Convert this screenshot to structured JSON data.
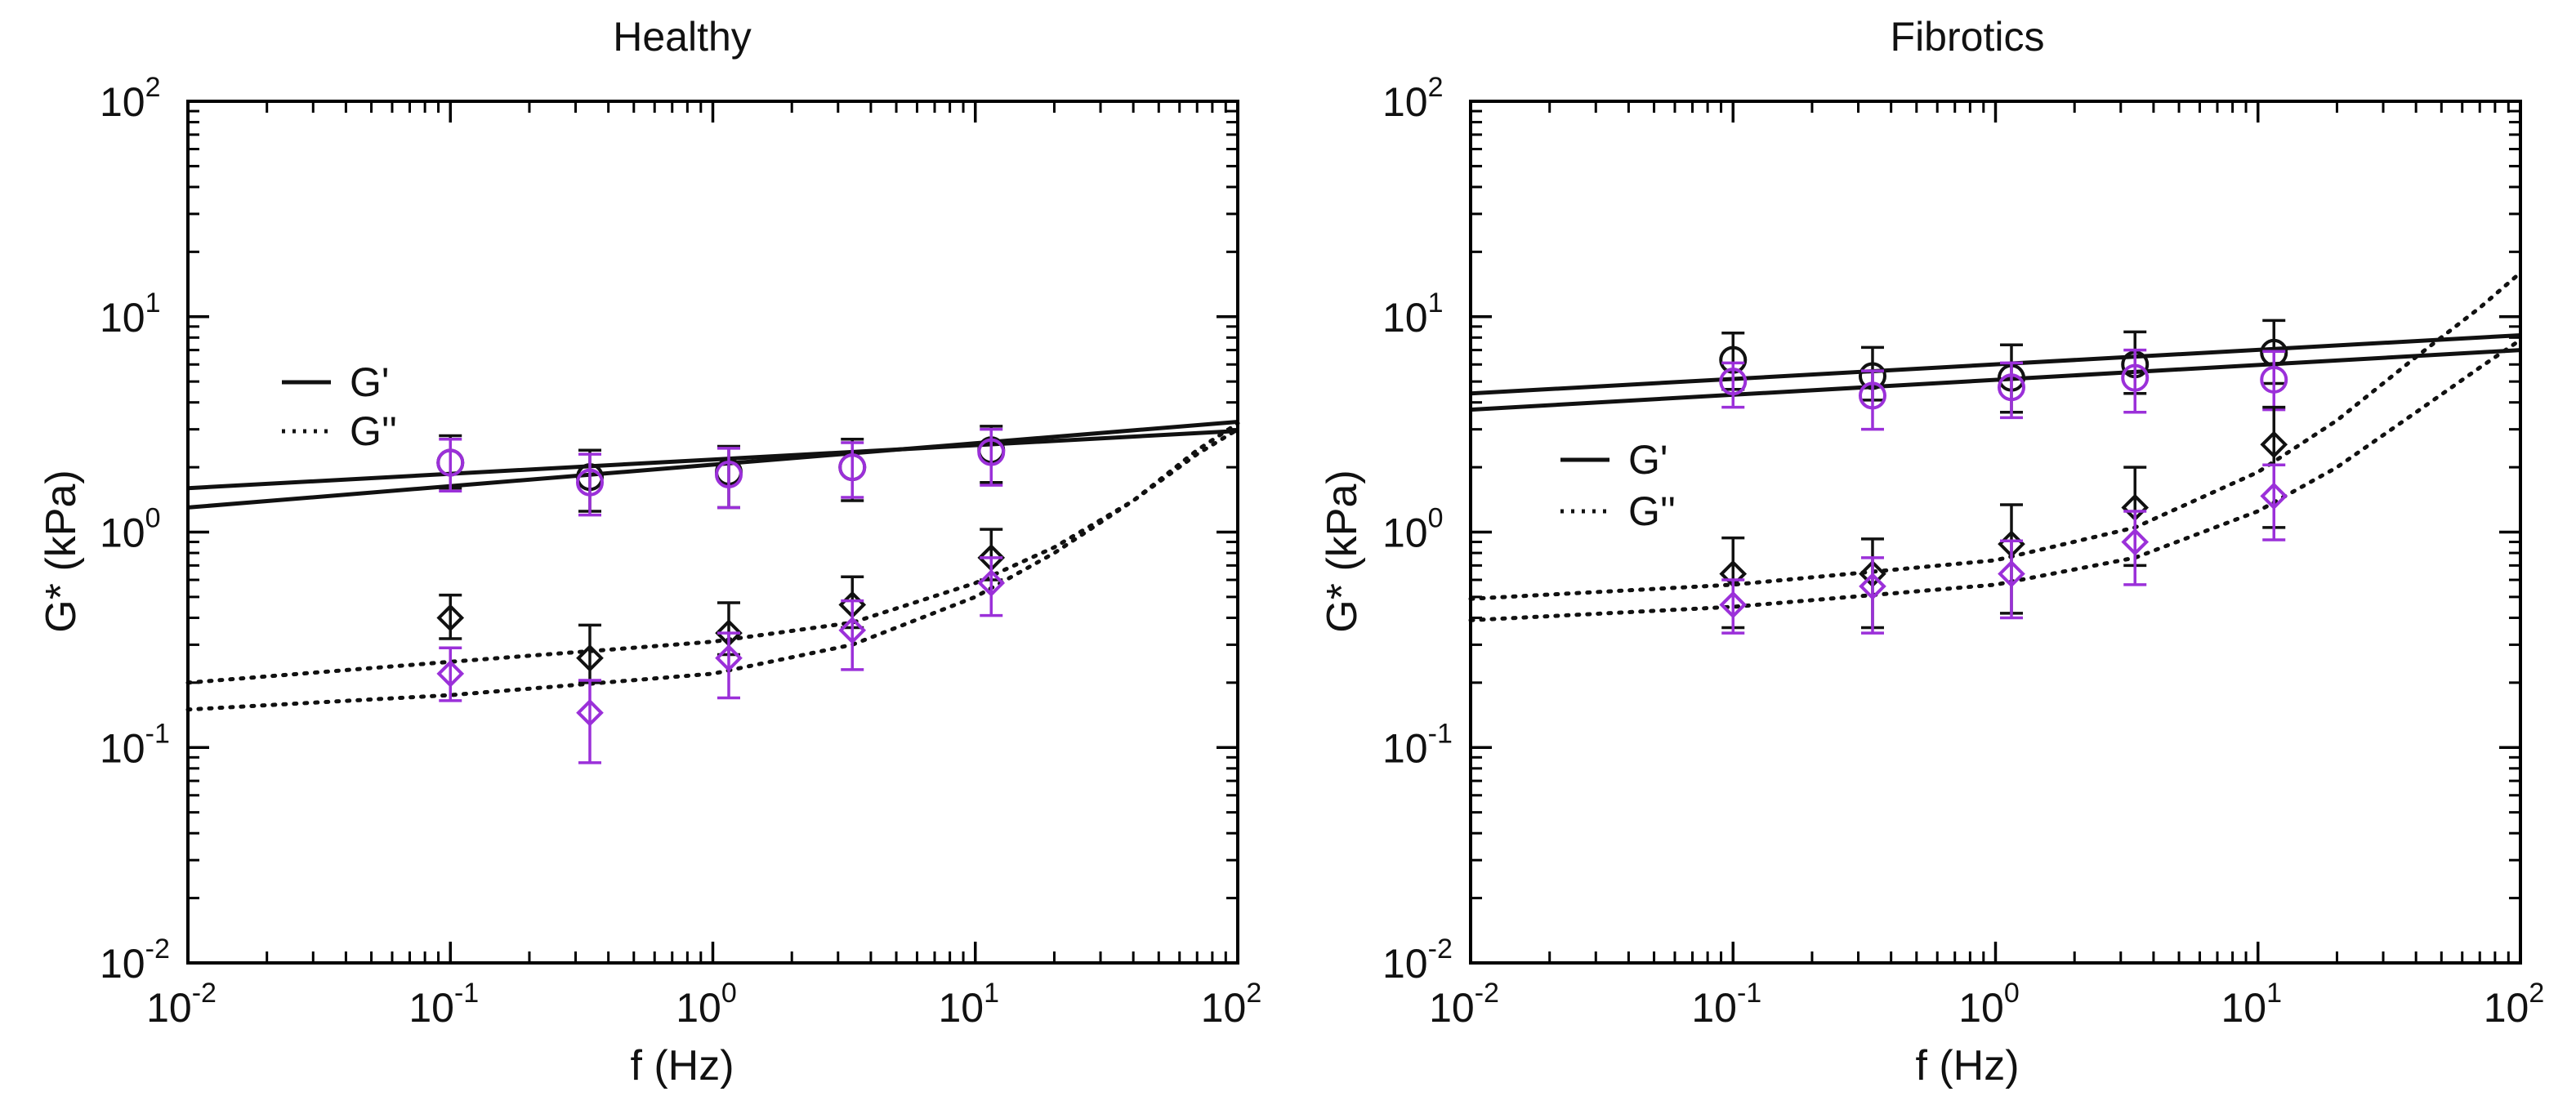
{
  "colors": {
    "black": "#111111",
    "purple": "#9b30d9",
    "axis": "#000000"
  },
  "chart_data": [
    {
      "type": "scatter",
      "title": "Healthy",
      "xlabel": "f (Hz)",
      "ylabel": "G* (kPa)",
      "xscale": "log",
      "yscale": "log",
      "xlim": [
        0.01,
        100
      ],
      "ylim": [
        0.01,
        100
      ],
      "xticks": [
        {
          "base": "10",
          "exp": "-2"
        },
        {
          "base": "10",
          "exp": "-1"
        },
        {
          "base": "10",
          "exp": "0"
        },
        {
          "base": "10",
          "exp": "1"
        },
        {
          "base": "10",
          "exp": "2"
        }
      ],
      "yticks": [
        {
          "base": "10",
          "exp": "-2"
        },
        {
          "base": "10",
          "exp": "-1"
        },
        {
          "base": "10",
          "exp": "0"
        },
        {
          "base": "10",
          "exp": "1"
        },
        {
          "base": "10",
          "exp": "2"
        }
      ],
      "legend": {
        "position": "upper-left",
        "entries": [
          {
            "label": "G'",
            "style": "solid"
          },
          {
            "label": "G''",
            "style": "dotted"
          }
        ]
      },
      "series": [
        {
          "name": "G' black",
          "color": "black",
          "marker": "circle",
          "x": [
            0.1,
            0.34,
            1.15,
            3.4,
            11.5
          ],
          "y": [
            2.1,
            1.8,
            1.9,
            2.0,
            2.4
          ],
          "err_low": [
            1.6,
            1.25,
            1.3,
            1.4,
            1.7
          ],
          "err_high": [
            2.8,
            2.4,
            2.5,
            2.7,
            3.1
          ]
        },
        {
          "name": "G' purple",
          "color": "purple",
          "marker": "circle",
          "x": [
            0.1,
            0.34,
            1.15,
            3.4,
            11.5
          ],
          "y": [
            2.1,
            1.7,
            1.85,
            2.0,
            2.35
          ],
          "err_low": [
            1.55,
            1.2,
            1.3,
            1.45,
            1.65
          ],
          "err_high": [
            2.7,
            2.3,
            2.45,
            2.6,
            3.0
          ]
        },
        {
          "name": "G'' black",
          "color": "black",
          "marker": "diamond",
          "x": [
            0.1,
            0.34,
            1.15,
            3.4,
            11.5
          ],
          "y": [
            0.4,
            0.26,
            0.34,
            0.46,
            0.76
          ],
          "err_low": [
            0.32,
            0.2,
            0.27,
            0.36,
            0.6
          ],
          "err_high": [
            0.51,
            0.37,
            0.47,
            0.62,
            1.03
          ]
        },
        {
          "name": "G'' purple",
          "color": "purple",
          "marker": "diamond",
          "x": [
            0.1,
            0.34,
            1.15,
            3.4,
            11.5
          ],
          "y": [
            0.22,
            0.145,
            0.26,
            0.35,
            0.58
          ],
          "err_low": [
            0.165,
            0.085,
            0.17,
            0.23,
            0.41
          ],
          "err_high": [
            0.29,
            0.205,
            0.34,
            0.48,
            0.76
          ]
        }
      ],
      "fits": [
        {
          "name": "G' fit 1",
          "style": "solid",
          "x": [
            0.01,
            100
          ],
          "y": [
            1.6,
            2.95
          ]
        },
        {
          "name": "G' fit 2",
          "style": "solid",
          "x": [
            0.01,
            100
          ],
          "y": [
            1.3,
            3.25
          ]
        },
        {
          "name": "G'' fit 1",
          "style": "dotted",
          "x": [
            0.01,
            0.1,
            1,
            3.4,
            10,
            20,
            40,
            70,
            100
          ],
          "y": [
            0.2,
            0.25,
            0.31,
            0.38,
            0.58,
            0.85,
            1.4,
            2.3,
            3.0
          ]
        },
        {
          "name": "G'' fit 2",
          "style": "dotted",
          "x": [
            0.01,
            0.1,
            1,
            3.4,
            10,
            20,
            40,
            70,
            100
          ],
          "y": [
            0.15,
            0.175,
            0.22,
            0.3,
            0.5,
            0.8,
            1.4,
            2.4,
            3.2
          ]
        }
      ]
    },
    {
      "type": "scatter",
      "title": "Fibrotics",
      "xlabel": "f (Hz)",
      "ylabel": "G* (kPa)",
      "xscale": "log",
      "yscale": "log",
      "xlim": [
        0.01,
        100
      ],
      "ylim": [
        0.01,
        100
      ],
      "xticks": [
        {
          "base": "10",
          "exp": "-2"
        },
        {
          "base": "10",
          "exp": "-1"
        },
        {
          "base": "10",
          "exp": "0"
        },
        {
          "base": "10",
          "exp": "1"
        },
        {
          "base": "10",
          "exp": "2"
        }
      ],
      "yticks": [
        {
          "base": "10",
          "exp": "-2"
        },
        {
          "base": "10",
          "exp": "-1"
        },
        {
          "base": "10",
          "exp": "0"
        },
        {
          "base": "10",
          "exp": "1"
        },
        {
          "base": "10",
          "exp": "2"
        }
      ],
      "legend": {
        "position": "center-left",
        "entries": [
          {
            "label": "G'",
            "style": "solid"
          },
          {
            "label": "G''",
            "style": "dotted"
          }
        ]
      },
      "series": [
        {
          "name": "G' black",
          "color": "black",
          "marker": "circle",
          "x": [
            0.1,
            0.34,
            1.15,
            3.4,
            11.5
          ],
          "y": [
            6.3,
            5.3,
            5.2,
            6.0,
            6.8
          ],
          "err_low": [
            4.6,
            4.1,
            3.6,
            4.4,
            4.9
          ],
          "err_high": [
            8.4,
            7.2,
            7.4,
            8.5,
            9.6
          ]
        },
        {
          "name": "G' purple",
          "color": "purple",
          "marker": "circle",
          "x": [
            0.1,
            0.34,
            1.15,
            3.4,
            11.5
          ],
          "y": [
            5.0,
            4.3,
            4.7,
            5.2,
            5.1
          ],
          "err_low": [
            3.8,
            3.0,
            3.4,
            3.6,
            3.7
          ],
          "err_high": [
            6.1,
            5.6,
            6.1,
            7.0,
            6.9
          ]
        },
        {
          "name": "G'' black",
          "color": "black",
          "marker": "diamond",
          "x": [
            0.1,
            0.34,
            1.15,
            3.4,
            11.5
          ],
          "y": [
            0.64,
            0.64,
            0.88,
            1.3,
            2.55
          ],
          "err_low": [
            0.36,
            0.36,
            0.42,
            0.7,
            1.05
          ],
          "err_high": [
            0.94,
            0.93,
            1.34,
            2.0,
            3.8
          ]
        },
        {
          "name": "G'' purple",
          "color": "purple",
          "marker": "diamond",
          "x": [
            0.1,
            0.34,
            1.15,
            3.4,
            11.5
          ],
          "y": [
            0.46,
            0.56,
            0.64,
            0.9,
            1.47
          ],
          "err_low": [
            0.34,
            0.34,
            0.4,
            0.57,
            0.92
          ],
          "err_high": [
            0.6,
            0.76,
            0.91,
            1.25,
            2.05
          ]
        }
      ],
      "fits": [
        {
          "name": "G' fit 1",
          "style": "solid",
          "x": [
            0.01,
            100
          ],
          "y": [
            4.4,
            8.2
          ]
        },
        {
          "name": "G' fit 2",
          "style": "solid",
          "x": [
            0.01,
            100
          ],
          "y": [
            3.7,
            7.0
          ]
        },
        {
          "name": "G'' fit 1",
          "style": "dotted",
          "x": [
            0.01,
            0.1,
            1,
            3.4,
            10,
            20,
            40,
            70,
            100
          ],
          "y": [
            0.49,
            0.57,
            0.74,
            1.05,
            1.9,
            3.3,
            6.5,
            11.0,
            16.0
          ]
        },
        {
          "name": "G'' fit 2",
          "style": "dotted",
          "x": [
            0.01,
            0.1,
            1,
            3.4,
            10,
            20,
            40,
            70,
            100
          ],
          "y": [
            0.39,
            0.45,
            0.57,
            0.76,
            1.25,
            2.0,
            3.6,
            5.8,
            7.8
          ]
        }
      ]
    }
  ]
}
